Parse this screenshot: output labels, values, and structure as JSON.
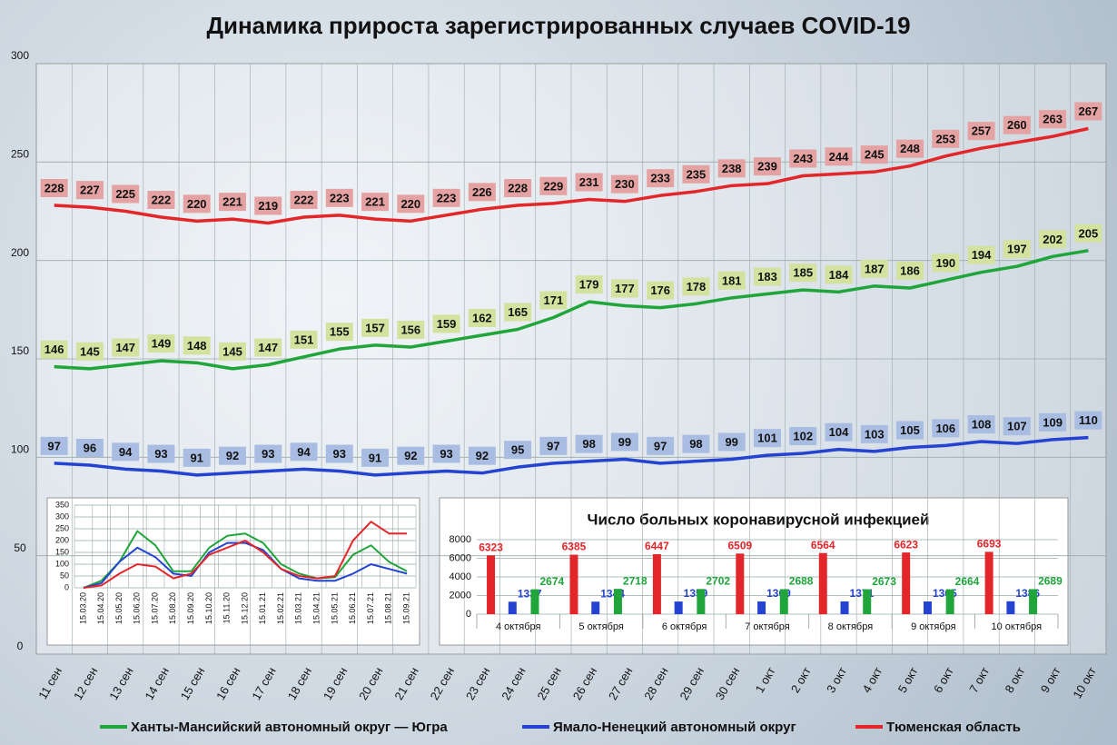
{
  "chart_data": [
    {
      "type": "line",
      "title": "Динамика прироста зарегистрированных случаев COVID-19",
      "categories": [
        "11 сен",
        "12 сен",
        "13 сен",
        "14 сен",
        "15 сен",
        "16 сен",
        "17 сен",
        "18 сен",
        "19 сен",
        "20 сен",
        "21 сен",
        "22 сен",
        "23 сен",
        "24 сен",
        "25 сен",
        "26 сен",
        "27 сен",
        "28 сен",
        "29 сен",
        "30 сен",
        "1 окт",
        "2 окт",
        "3 окт",
        "4 окт",
        "5 окт",
        "6 окт",
        "7 окт",
        "8 окт",
        "9 окт",
        "10 окт"
      ],
      "series": [
        {
          "name": "Ханты-Мансийский автономный округ — Югра",
          "color": "#1fa53a",
          "values": [
            146,
            145,
            147,
            149,
            148,
            145,
            147,
            151,
            155,
            157,
            156,
            159,
            162,
            165,
            171,
            179,
            177,
            176,
            178,
            181,
            183,
            185,
            184,
            187,
            186,
            190,
            194,
            197,
            202,
            205
          ]
        },
        {
          "name": "Ямало-Ненецкий автономный округ",
          "color": "#2443d0",
          "values": [
            97,
            96,
            94,
            93,
            91,
            92,
            93,
            94,
            93,
            91,
            92,
            93,
            92,
            95,
            97,
            98,
            99,
            97,
            98,
            99,
            101,
            102,
            104,
            103,
            105,
            106,
            108,
            107,
            109,
            110
          ]
        },
        {
          "name": "Тюменская область",
          "color": "#e3262a",
          "values": [
            228,
            227,
            225,
            222,
            220,
            221,
            219,
            222,
            223,
            221,
            220,
            223,
            226,
            228,
            229,
            231,
            230,
            233,
            235,
            238,
            239,
            243,
            244,
            245,
            248,
            253,
            257,
            260,
            263,
            267
          ]
        }
      ],
      "ylim": [
        0,
        300
      ],
      "yticks": [
        0,
        50,
        100,
        150,
        200,
        250,
        300
      ],
      "grid": true
    },
    {
      "type": "line",
      "categories": [
        "15.03.20",
        "15.04.20",
        "15.05.20",
        "15.06.20",
        "15.07.20",
        "15.08.20",
        "15.09.20",
        "15.10.20",
        "15.11.20",
        "15.12.20",
        "15.01.21",
        "15.02.21",
        "15.03.21",
        "15.04.21",
        "15.05.21",
        "15.06.21",
        "15.07.21",
        "15.08.21",
        "15.09.21"
      ],
      "series": [
        {
          "color": "#1fa53a",
          "values": [
            0,
            30,
            110,
            240,
            180,
            70,
            70,
            170,
            220,
            230,
            190,
            100,
            60,
            40,
            45,
            140,
            180,
            110,
            70
          ]
        },
        {
          "color": "#2443d0",
          "values": [
            0,
            20,
            110,
            170,
            130,
            60,
            50,
            150,
            190,
            190,
            160,
            80,
            40,
            30,
            30,
            60,
            100,
            80,
            60
          ]
        },
        {
          "color": "#e3262a",
          "values": [
            0,
            10,
            60,
            100,
            90,
            40,
            60,
            140,
            170,
            200,
            150,
            80,
            50,
            40,
            50,
            200,
            280,
            230,
            230
          ]
        }
      ],
      "ylim": [
        0,
        350
      ],
      "yticks": [
        0,
        50,
        100,
        150,
        200,
        250,
        300,
        350
      ],
      "grid": true
    },
    {
      "type": "bar",
      "title": "Число больных коронавирусной инфекцией",
      "categories": [
        "4 октября",
        "5 октября",
        "6 октября",
        "7 октября",
        "8 октября",
        "9 октября",
        "10 октября"
      ],
      "series": [
        {
          "color": "#e3262a",
          "values": [
            6323,
            6385,
            6447,
            6509,
            6564,
            6623,
            6693
          ]
        },
        {
          "color": "#2443d0",
          "values": [
            1337,
            1344,
            1359,
            1369,
            1371,
            1365,
            1386
          ]
        },
        {
          "color": "#1fa53a",
          "values": [
            2674,
            2718,
            2702,
            2688,
            2673,
            2664,
            2689
          ]
        }
      ],
      "ylim": [
        0,
        8000
      ],
      "yticks": [
        0,
        2000,
        4000,
        6000,
        8000
      ],
      "grid": true
    }
  ]
}
